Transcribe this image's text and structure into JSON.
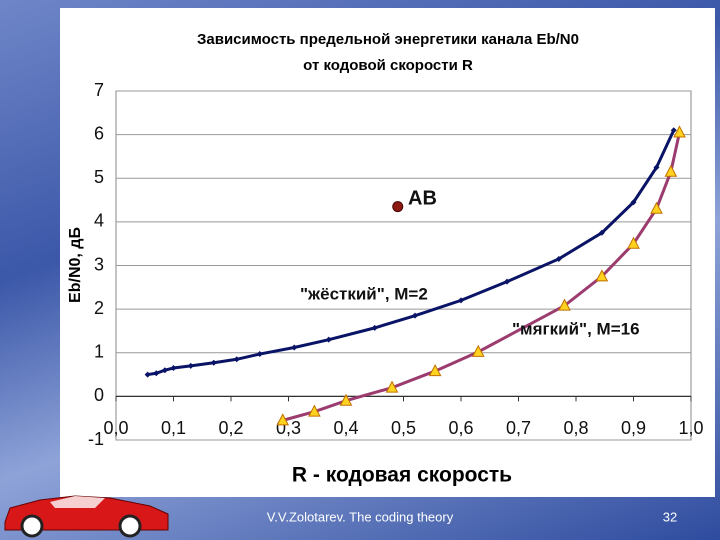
{
  "chart_data": {
    "type": "line",
    "title": "Зависимость  предельной энергетики канала Eb/N0",
    "subtitle": "от кодовой скорости R",
    "y_label": "Eb/N0,  дБ",
    "x_label": "R -   кодовая   скорость",
    "xlim": [
      0,
      1
    ],
    "ylim": [
      -1,
      7
    ],
    "xticks": [
      {
        "value": 0,
        "label": "0,0"
      },
      {
        "value": 0.1,
        "label": "0,1"
      },
      {
        "value": 0.2,
        "label": "0,2"
      },
      {
        "value": 0.3,
        "label": "0,3"
      },
      {
        "value": 0.4,
        "label": "0,4"
      },
      {
        "value": 0.5,
        "label": "0,5"
      },
      {
        "value": 0.6,
        "label": "0,6"
      },
      {
        "value": 0.7,
        "label": "0,7"
      },
      {
        "value": 0.8,
        "label": "0,8"
      },
      {
        "value": 0.9,
        "label": "0,9"
      },
      {
        "value": 1,
        "label": "1,0"
      }
    ],
    "yticks": [
      -1,
      0,
      1,
      2,
      3,
      4,
      5,
      6,
      7
    ],
    "grid": true,
    "series": [
      {
        "name": "\"жёсткий\", M=2",
        "color": "#0a1466",
        "marker": "diamond",
        "line": true,
        "x": [
          0.055,
          0.07,
          0.085,
          0.1,
          0.13,
          0.17,
          0.21,
          0.25,
          0.31,
          0.37,
          0.45,
          0.52,
          0.6,
          0.68,
          0.77,
          0.845,
          0.9,
          0.94,
          0.97
        ],
        "values": [
          0.5,
          0.53,
          0.6,
          0.65,
          0.7,
          0.77,
          0.85,
          0.97,
          1.12,
          1.3,
          1.57,
          1.85,
          2.2,
          2.63,
          3.15,
          3.75,
          4.45,
          5.25,
          6.1
        ]
      },
      {
        "name": "\"мягкий\", M=16",
        "color": "#9b3b6e",
        "marker": "triangle",
        "marker_color": "#ffd21f",
        "line": true,
        "x": [
          0.29,
          0.345,
          0.4,
          0.48,
          0.555,
          0.63,
          0.78,
          0.845,
          0.9,
          0.94,
          0.965,
          0.98
        ],
        "values": [
          -0.55,
          -0.35,
          -0.1,
          0.2,
          0.58,
          1.02,
          2.08,
          2.75,
          3.5,
          4.3,
          5.15,
          6.05
        ]
      },
      {
        "name": "AB",
        "color": "#8b1a10",
        "marker": "circle",
        "line": false,
        "x": [
          0.49
        ],
        "values": [
          4.35
        ]
      }
    ]
  },
  "footer": {
    "author": "V.V.Zolotarev. The coding theory",
    "page": 32
  }
}
